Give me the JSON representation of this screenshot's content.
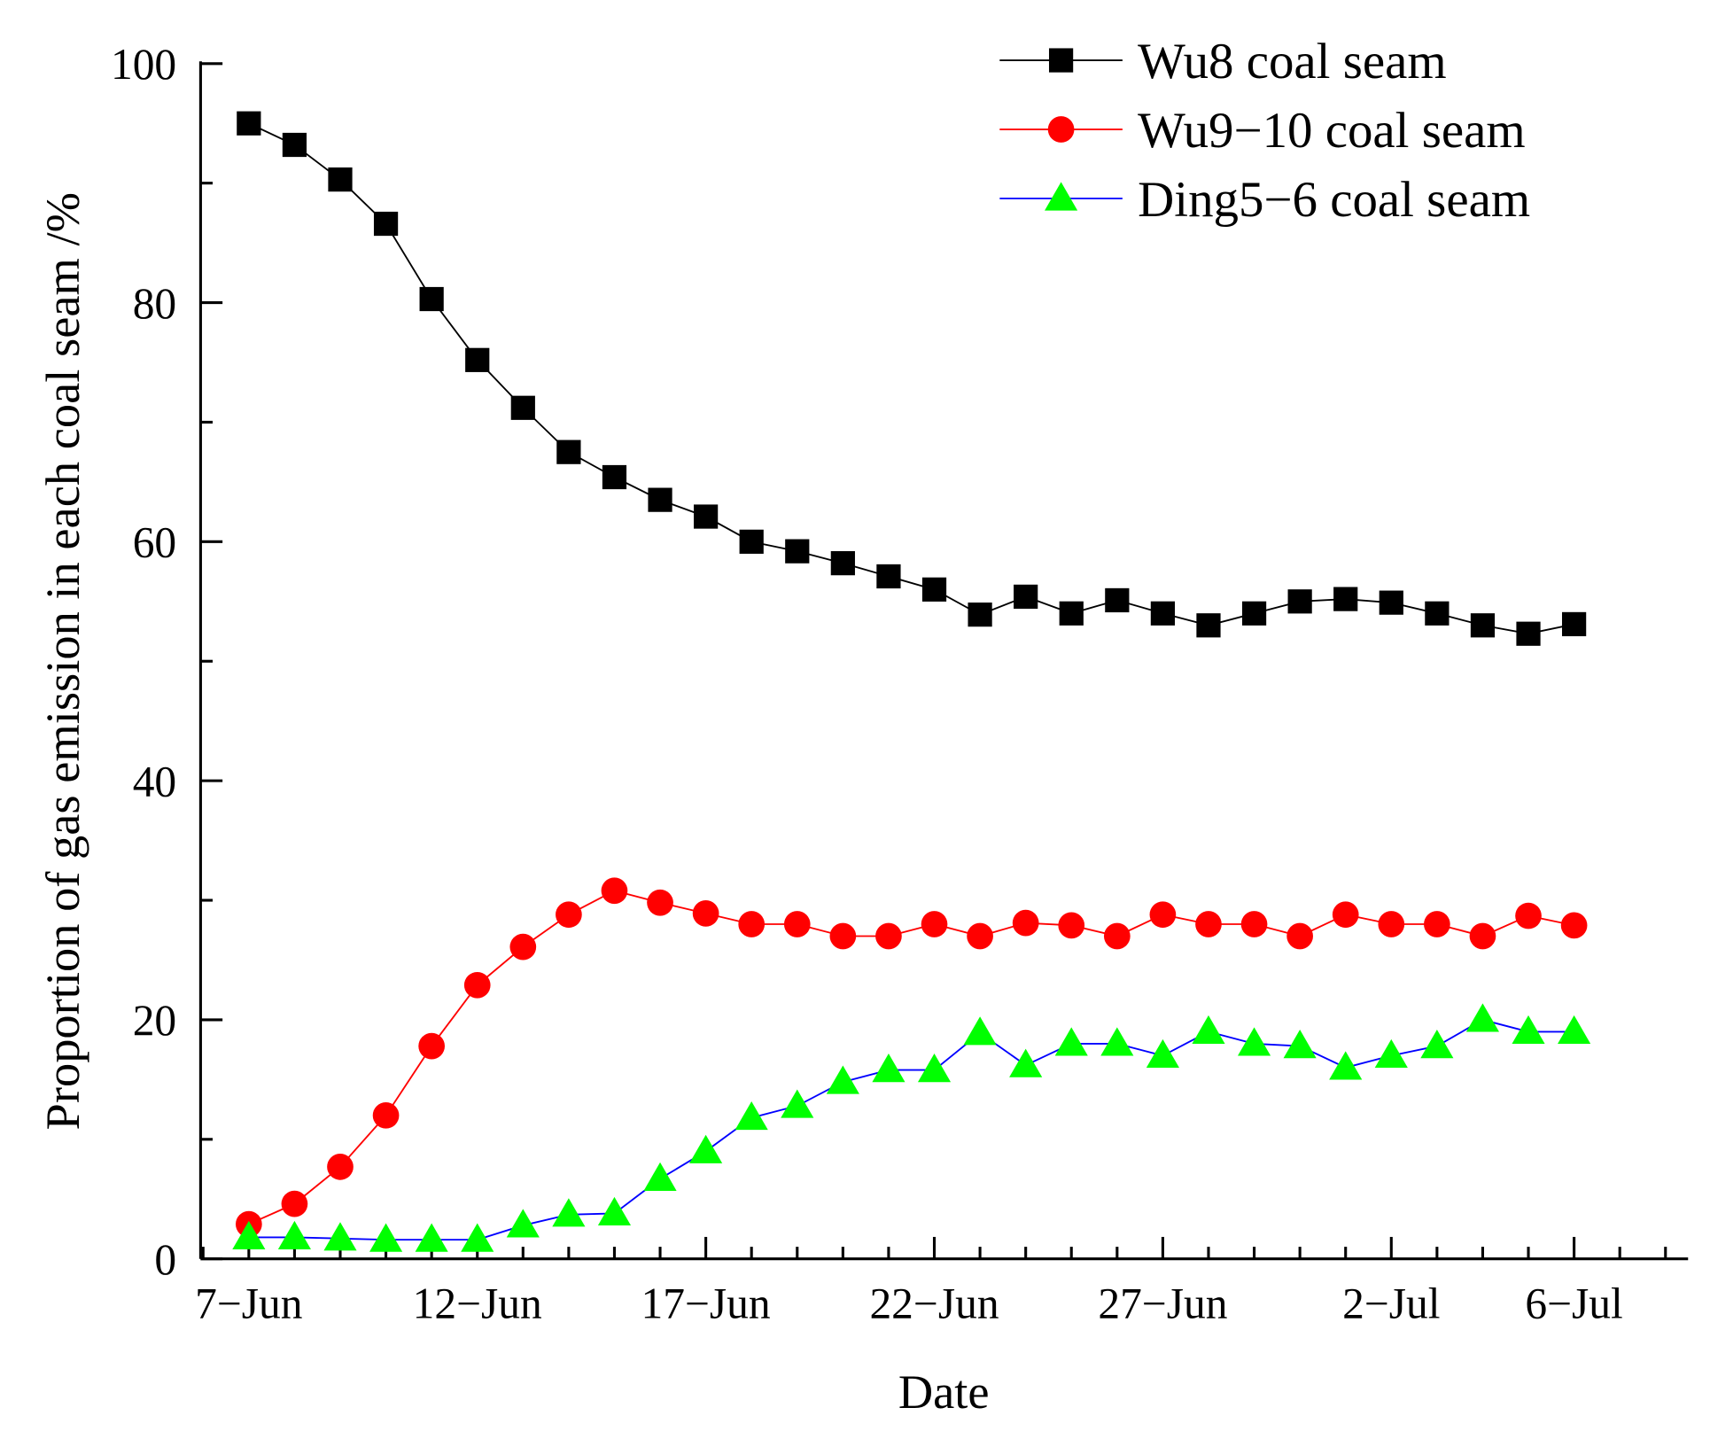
{
  "chart_data": {
    "type": "line",
    "title": "",
    "xlabel": "Date",
    "ylabel": "Proportion of gas emission in each coal seam /%",
    "ylim": [
      0,
      100
    ],
    "yticks": [
      "0",
      "20",
      "40",
      "60",
      "80",
      "100"
    ],
    "xtick_labels": [
      {
        "index": 0,
        "label": "7−Jun"
      },
      {
        "index": 5,
        "label": "12−Jun"
      },
      {
        "index": 10,
        "label": "17−Jun"
      },
      {
        "index": 15,
        "label": "22−Jun"
      },
      {
        "index": 20,
        "label": "27−Jun"
      },
      {
        "index": 25,
        "label": "2−Jul"
      },
      {
        "index": 29,
        "label": "6−Jul"
      }
    ],
    "x": [
      "7-Jun",
      "8-Jun",
      "9-Jun",
      "10-Jun",
      "11-Jun",
      "12-Jun",
      "13-Jun",
      "14-Jun",
      "15-Jun",
      "16-Jun",
      "17-Jun",
      "18-Jun",
      "19-Jun",
      "20-Jun",
      "21-Jun",
      "22-Jun",
      "23-Jun",
      "24-Jun",
      "25-Jun",
      "26-Jun",
      "27-Jun",
      "28-Jun",
      "29-Jun",
      "30-Jun",
      "1-Jul",
      "2-Jul",
      "3-Jul",
      "4-Jul",
      "5-Jul",
      "6-Jul"
    ],
    "legend_position": "top-right",
    "grid": false,
    "series": [
      {
        "name": "Wu8 coal seam",
        "marker": "square",
        "line_color": "#000000",
        "marker_color": "#000000",
        "values": [
          95.0,
          93.2,
          90.3,
          86.6,
          80.3,
          75.2,
          71.2,
          67.5,
          65.4,
          63.5,
          62.1,
          60.0,
          59.2,
          58.2,
          57.1,
          56.0,
          53.9,
          55.4,
          54.0,
          55.1,
          54.0,
          53.0,
          54.0,
          55.0,
          55.2,
          54.9,
          54.0,
          53.0,
          52.3,
          53.1
        ]
      },
      {
        "name": "Wu9−10 coal seam",
        "marker": "circle",
        "line_color": "#ff0000",
        "marker_color": "#ff0000",
        "values": [
          2.9,
          4.6,
          7.7,
          12.0,
          17.8,
          22.9,
          26.1,
          28.8,
          30.8,
          29.8,
          28.9,
          28.0,
          28.0,
          27.0,
          27.0,
          28.0,
          27.0,
          28.1,
          27.9,
          27.0,
          28.8,
          28.0,
          28.0,
          27.0,
          28.8,
          28.0,
          28.0,
          27.0,
          28.7,
          27.9
        ]
      },
      {
        "name": "Ding5−6 coal seam",
        "marker": "triangle",
        "line_color": "#0000ff",
        "marker_color": "#00ff00",
        "values": [
          1.8,
          1.8,
          1.7,
          1.6,
          1.6,
          1.6,
          2.8,
          3.7,
          3.8,
          6.7,
          9.0,
          11.8,
          12.8,
          14.8,
          15.8,
          15.8,
          18.9,
          16.2,
          18.0,
          18.0,
          17.0,
          19.0,
          18.0,
          17.8,
          16.0,
          17.0,
          17.8,
          20.0,
          19.0,
          19.0
        ]
      }
    ]
  }
}
